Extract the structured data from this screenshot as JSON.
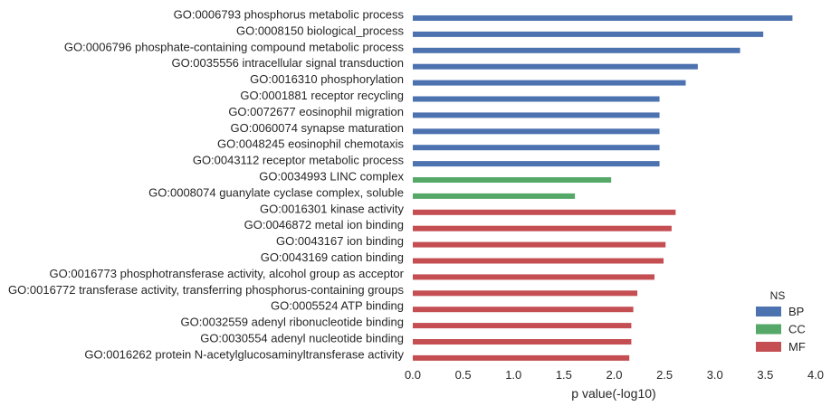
{
  "chart_data": {
    "type": "bar",
    "orientation": "horizontal",
    "xlabel": "p value(-log10)",
    "ylabel": "",
    "title": "",
    "xlim": [
      0,
      4
    ],
    "xticks": [
      "0.0",
      "0.5",
      "1.0",
      "1.5",
      "2.0",
      "2.5",
      "3.0",
      "3.5",
      "4.0"
    ],
    "grid": false,
    "legend": {
      "title": "NS",
      "placement": "bottom-right",
      "entries": [
        {
          "name": "BP",
          "color": "#4c72b0"
        },
        {
          "name": "CC",
          "color": "#55a868"
        },
        {
          "name": "MF",
          "color": "#c44e52"
        }
      ]
    },
    "categories": [
      "GO:0006793 phosphorus metabolic process",
      "GO:0008150 biological_process",
      "GO:0006796 phosphate-containing compound metabolic process",
      "GO:0035556 intracellular signal transduction",
      "GO:0016310 phosphorylation",
      "GO:0001881 receptor recycling",
      "GO:0072677 eosinophil migration",
      "GO:0060074 synapse maturation",
      "GO:0048245 eosinophil chemotaxis",
      "GO:0043112 receptor metabolic process",
      "GO:0034993 LINC complex",
      "GO:0008074 guanylate cyclase complex, soluble",
      "GO:0016301 kinase activity",
      "GO:0046872 metal ion binding",
      "GO:0043167 ion binding",
      "GO:0043169 cation binding",
      "GO:0016773 phosphotransferase activity, alcohol group as acceptor",
      "GO:0016772 transferase activity, transferring phosphorus-containing groups",
      "GO:0005524 ATP binding",
      "GO:0032559 adenyl ribonucleotide binding",
      "GO:0030554 adenyl nucleotide binding",
      "GO:0016262 protein N-acetylglucosaminyltransferase activity"
    ],
    "values": [
      3.77,
      3.48,
      3.25,
      2.83,
      2.71,
      2.45,
      2.45,
      2.45,
      2.45,
      2.45,
      1.97,
      1.61,
      2.61,
      2.57,
      2.51,
      2.49,
      2.4,
      2.23,
      2.19,
      2.17,
      2.17,
      2.15
    ],
    "groups": [
      "BP",
      "BP",
      "BP",
      "BP",
      "BP",
      "BP",
      "BP",
      "BP",
      "BP",
      "BP",
      "CC",
      "CC",
      "MF",
      "MF",
      "MF",
      "MF",
      "MF",
      "MF",
      "MF",
      "MF",
      "MF",
      "MF"
    ]
  }
}
